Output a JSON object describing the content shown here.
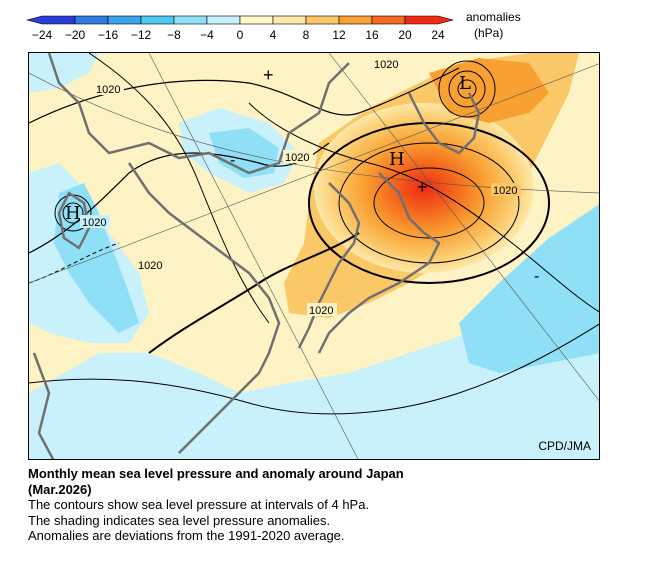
{
  "colorbar": {
    "tick_labels": [
      "−24",
      "−20",
      "−16",
      "−12",
      "−8",
      "−4",
      "0",
      "4",
      "8",
      "12",
      "16",
      "20",
      "24"
    ],
    "unit_label_line1": "anomalies",
    "unit_label_line2": "(hPa)",
    "colors": [
      "#2a3cd8",
      "#2f7be6",
      "#3aa5ee",
      "#4fc8f2",
      "#8fe0f6",
      "#c9f1fb",
      "#fff9c9",
      "#fde9a8",
      "#fbc868",
      "#f9a032",
      "#f56a1e",
      "#ee2a12"
    ]
  },
  "map": {
    "isobar_label": "1020",
    "high_symbol": "H",
    "low_symbol": "L",
    "plus_symbol": "+",
    "minus_symbol": "-",
    "credit": "CPD/JMA"
  },
  "caption": {
    "title_line1": "Monthly mean sea level pressure and anomaly around Japan",
    "title_line2": "(Mar.2026)",
    "line1": "The contours show sea level pressure at intervals of 4 hPa.",
    "line2": "The shading indicates sea level pressure anomalies.",
    "line3": "Anomalies are deviations from the 1991-2020 average."
  }
}
